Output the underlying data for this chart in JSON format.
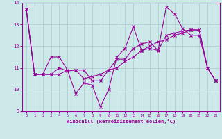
{
  "xlabel": "Windchill (Refroidissement éolien,°C)",
  "bg_color": "#cce8e8",
  "line_color": "#990099",
  "grid_color": "#aacccc",
  "x": [
    0,
    1,
    2,
    3,
    4,
    5,
    6,
    7,
    8,
    9,
    10,
    11,
    12,
    13,
    14,
    15,
    16,
    17,
    18,
    19,
    20,
    21,
    22,
    23
  ],
  "line1": [
    13.7,
    10.7,
    10.7,
    11.5,
    11.5,
    10.9,
    9.8,
    10.3,
    10.2,
    9.2,
    10.0,
    11.5,
    11.9,
    12.9,
    11.8,
    11.9,
    11.8,
    13.8,
    13.5,
    12.8,
    12.5,
    12.5,
    11.0,
    10.4
  ],
  "line2": [
    13.7,
    10.7,
    10.7,
    10.7,
    11.0,
    10.85,
    10.9,
    10.5,
    10.6,
    10.7,
    10.9,
    11.0,
    11.3,
    11.5,
    11.8,
    12.0,
    12.2,
    12.3,
    12.5,
    12.6,
    12.75,
    12.75,
    11.0,
    10.4
  ],
  "line3": [
    13.7,
    10.7,
    10.7,
    10.7,
    10.7,
    10.9,
    10.9,
    10.9,
    10.4,
    10.4,
    10.9,
    11.4,
    11.4,
    11.9,
    12.1,
    12.2,
    11.8,
    12.5,
    12.6,
    12.7,
    12.75,
    12.75,
    11.0,
    10.4
  ],
  "ylim": [
    9.0,
    14.0
  ],
  "yticks": [
    9,
    10,
    11,
    12,
    13,
    14
  ],
  "xticks": [
    0,
    1,
    2,
    3,
    4,
    5,
    6,
    7,
    8,
    9,
    10,
    11,
    12,
    13,
    14,
    15,
    16,
    17,
    18,
    19,
    20,
    21,
    22,
    23
  ]
}
